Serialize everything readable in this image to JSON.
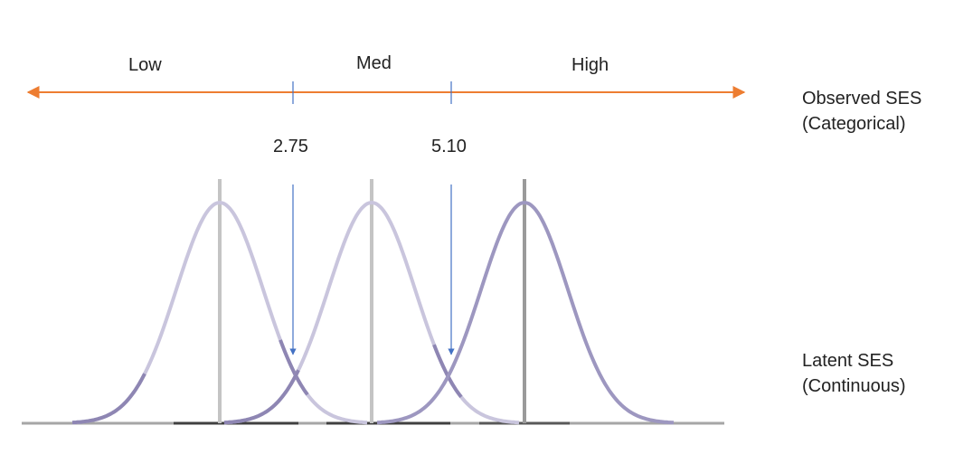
{
  "categories": {
    "low": "Low",
    "med": "Med",
    "high": "High"
  },
  "cutpoints": {
    "first": "2.75",
    "second": "5.10"
  },
  "observed": {
    "line1": "Observed SES",
    "line2": "(Categorical)"
  },
  "latent": {
    "line1": "Latent SES",
    "line2": "(Continuous)"
  },
  "colors": {
    "arrow": "#ED7D31",
    "cut": "#4472C4",
    "curve_light": "#C9C5DD",
    "curve_dark": "#9D97C0",
    "tail": "#8E86B3",
    "mean_light": "#C4C4C4",
    "mean_dark": "#9A9A9A",
    "baseline": "#A6A6A6",
    "baseline_dark": "#404040"
  }
}
